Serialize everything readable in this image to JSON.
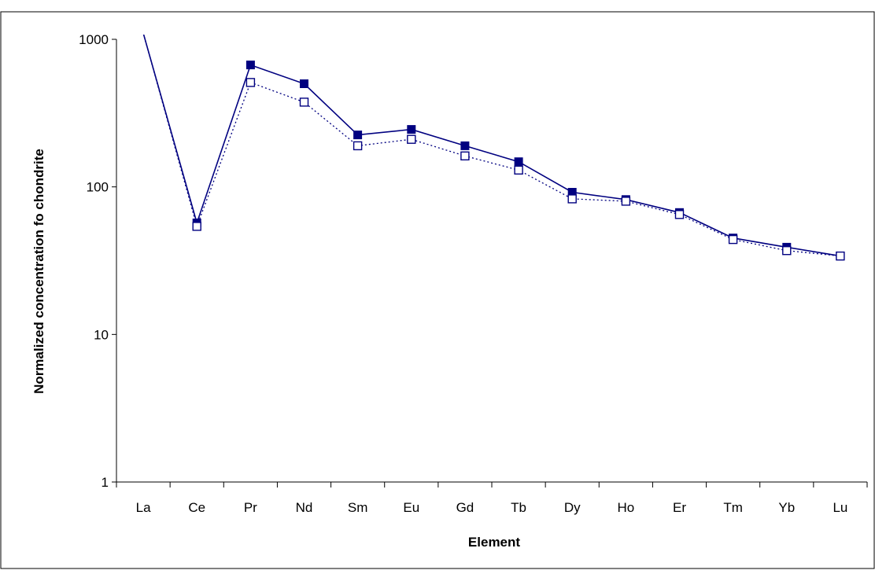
{
  "chart_data": {
    "type": "line",
    "xlabel": "Element",
    "ylabel": "Normalized concentration fo chondrite",
    "y_scale": "log",
    "ylim": [
      1,
      1000
    ],
    "y_ticks": [
      1,
      10,
      100,
      1000
    ],
    "y_tick_labels": [
      "1",
      "10",
      "100",
      "1000"
    ],
    "categories": [
      "La",
      "Ce",
      "Pr",
      "Nd",
      "Sm",
      "Eu",
      "Gd",
      "Tb",
      "Dy",
      "Ho",
      "Er",
      "Tm",
      "Yb",
      "Lu"
    ],
    "grid": false,
    "legend": "none",
    "series": [
      {
        "marker": "filled-square",
        "line": "solid",
        "color": "#000080",
        "values": [
          1100,
          57,
          670,
          500,
          225,
          245,
          190,
          148,
          92,
          82,
          67,
          45,
          39,
          34
        ]
      },
      {
        "marker": "open-square",
        "line": "dotted",
        "color": "#000080",
        "values": [
          1100,
          54,
          510,
          375,
          190,
          210,
          162,
          130,
          83,
          80,
          65,
          44,
          37,
          34
        ]
      }
    ]
  }
}
